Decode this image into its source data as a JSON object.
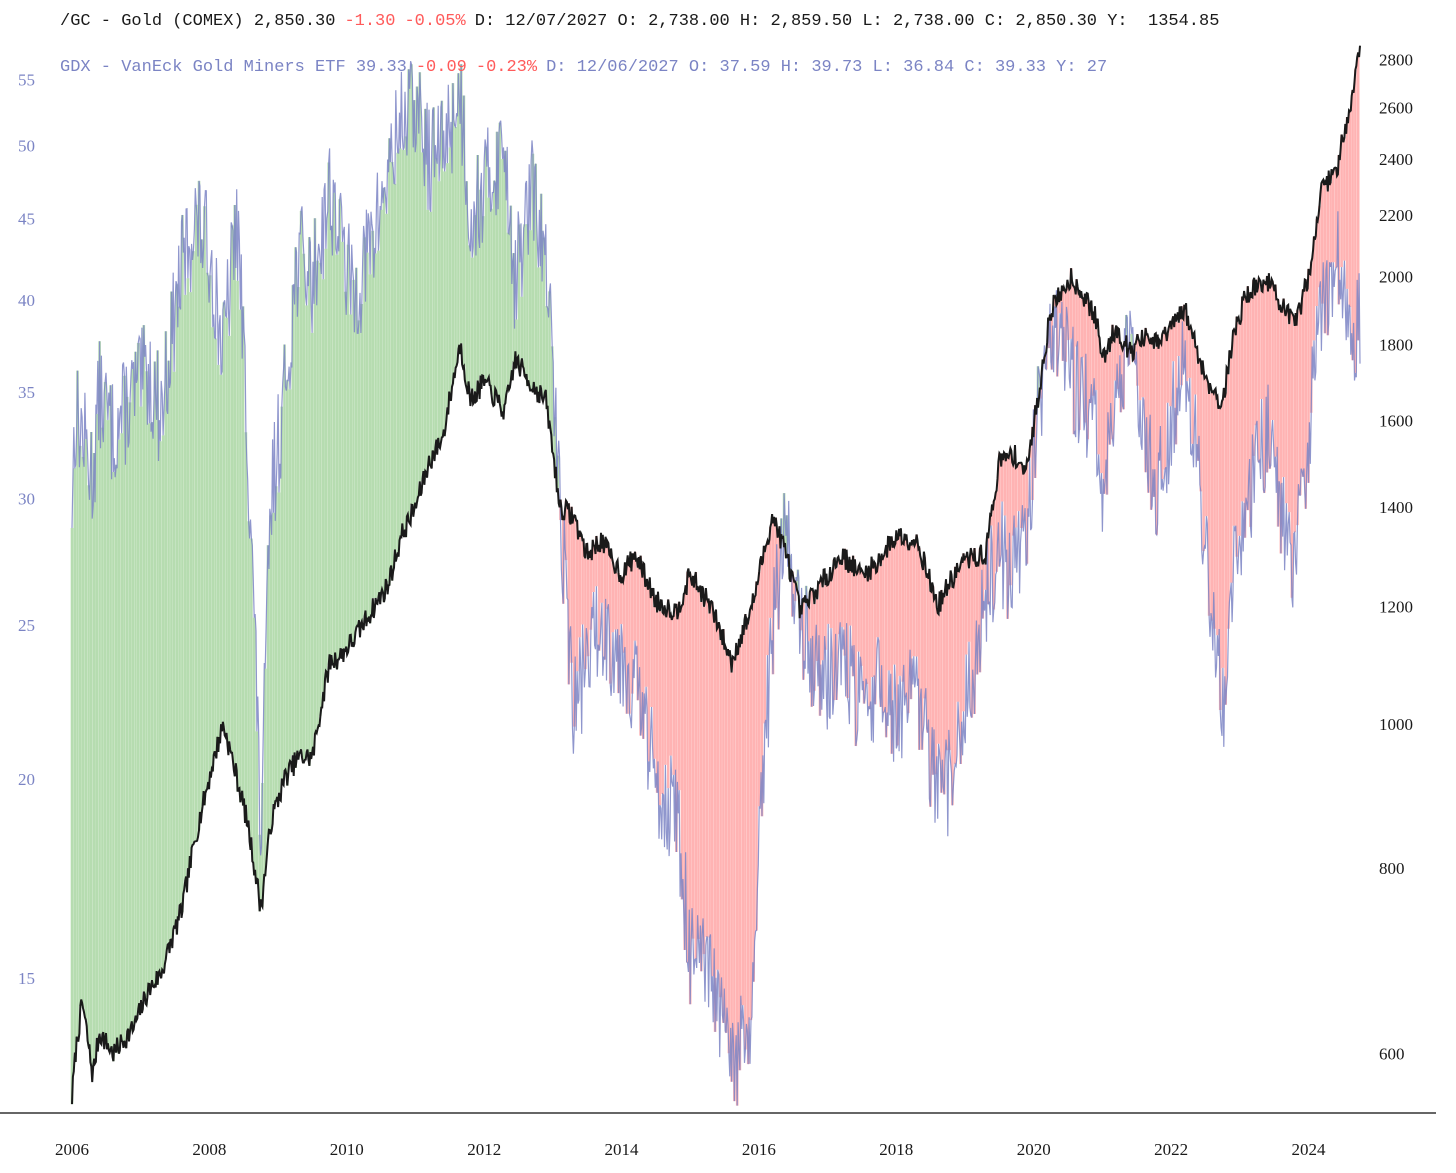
{
  "chart_data": {
    "type": "line",
    "chart_style": "dual-axis price comparison with shaded spread (green when GDX above gold, red when below)",
    "header": {
      "gold": {
        "symbol_text": "/GC - Gold (COMEX) 2,850.30",
        "change": "-1.30",
        "change_pct": "-0.05%",
        "details": "D: 12/07/2027 O: 2,738.00 H: 2,859.50 L: 2,738.00 C: 2,850.30 Y:  1354.85"
      },
      "gdx": {
        "symbol_text": "GDX - VanEck Gold Miners ETF 39.33",
        "change": "-0.09",
        "change_pct": "-0.23%",
        "details": "D: 12/06/2027 O: 37.59 H: 39.73 L: 36.84 C: 39.33 Y: 27"
      }
    },
    "colors": {
      "gold_line": "#1a1a1a",
      "gdx_line": "#7b84c4",
      "gdx_axis_text": "#7b84c4",
      "positive_fill": "#b6dcb0",
      "negative_fill": "#ffb3b3",
      "negative_text": "#ff5a5a"
    },
    "x_axis": {
      "ticks": [
        "2006",
        "2008",
        "2010",
        "2012",
        "2014",
        "2016",
        "2018",
        "2020",
        "2022",
        "2024"
      ],
      "range": [
        2006.0,
        2024.75
      ]
    },
    "y_left": {
      "series": "GDX",
      "scale": "log",
      "ticks": [
        55,
        50,
        45,
        40,
        35,
        30,
        25,
        20,
        15
      ],
      "range": [
        12.5,
        57
      ]
    },
    "y_right": {
      "series": "Gold",
      "scale": "log",
      "ticks": [
        2800,
        2600,
        2400,
        2200,
        2000,
        1800,
        1600,
        1400,
        1200,
        1000,
        800,
        600
      ],
      "range": [
        555,
        2820
      ]
    },
    "series": [
      {
        "name": "/GC - Gold (COMEX)",
        "axis": "right",
        "x": [
          2006.0,
          2006.05,
          2006.15,
          2006.3,
          2006.4,
          2006.6,
          2006.9,
          2007.1,
          2007.3,
          2007.6,
          2007.8,
          2008.0,
          2008.2,
          2008.4,
          2008.55,
          2008.75,
          2008.9,
          2009.1,
          2009.3,
          2009.5,
          2009.75,
          2009.9,
          2010.1,
          2010.4,
          2010.6,
          2010.8,
          2011.0,
          2011.2,
          2011.4,
          2011.65,
          2011.8,
          2012.0,
          2012.3,
          2012.45,
          2012.7,
          2012.9,
          2013.1,
          2013.3,
          2013.5,
          2013.7,
          2014.0,
          2014.2,
          2014.5,
          2014.8,
          2015.0,
          2015.3,
          2015.6,
          2015.9,
          2016.2,
          2016.4,
          2016.6,
          2016.95,
          2017.2,
          2017.5,
          2017.7,
          2018.0,
          2018.3,
          2018.6,
          2018.8,
          2019.0,
          2019.3,
          2019.5,
          2019.7,
          2019.9,
          2020.1,
          2020.25,
          2020.55,
          2020.7,
          2020.9,
          2021.0,
          2021.2,
          2021.4,
          2021.6,
          2021.8,
          2022.0,
          2022.2,
          2022.5,
          2022.75,
          2022.9,
          2023.1,
          2023.4,
          2023.6,
          2023.8,
          2024.0,
          2024.2,
          2024.4,
          2024.6,
          2024.75
        ],
        "values": [
          560,
          600,
          650,
          580,
          620,
          600,
          625,
          660,
          680,
          750,
          840,
          920,
          1000,
          920,
          860,
          750,
          860,
          920,
          950,
          950,
          1100,
          1110,
          1140,
          1200,
          1240,
          1340,
          1400,
          1500,
          1560,
          1800,
          1650,
          1700,
          1620,
          1760,
          1690,
          1650,
          1400,
          1380,
          1300,
          1330,
          1260,
          1300,
          1210,
          1190,
          1260,
          1200,
          1100,
          1200,
          1380,
          1300,
          1190,
          1250,
          1300,
          1260,
          1280,
          1340,
          1330,
          1200,
          1250,
          1290,
          1300,
          1500,
          1520,
          1480,
          1700,
          1900,
          2000,
          1950,
          1880,
          1760,
          1850,
          1780,
          1820,
          1800,
          1850,
          1900,
          1710,
          1640,
          1820,
          1950,
          1990,
          1920,
          1850,
          2000,
          2300,
          2350,
          2600,
          2850
        ]
      },
      {
        "name": "GDX - VanEck Gold Miners ETF",
        "axis": "left",
        "x": [
          2006.0,
          2006.05,
          2006.15,
          2006.3,
          2006.4,
          2006.6,
          2006.9,
          2007.1,
          2007.3,
          2007.6,
          2007.8,
          2008.0,
          2008.2,
          2008.4,
          2008.55,
          2008.75,
          2008.9,
          2009.1,
          2009.3,
          2009.5,
          2009.75,
          2009.9,
          2010.1,
          2010.4,
          2010.6,
          2010.8,
          2011.0,
          2011.2,
          2011.4,
          2011.65,
          2011.8,
          2012.0,
          2012.3,
          2012.45,
          2012.7,
          2012.9,
          2013.1,
          2013.3,
          2013.5,
          2013.7,
          2014.0,
          2014.2,
          2014.5,
          2014.8,
          2015.0,
          2015.3,
          2015.6,
          2015.9,
          2016.2,
          2016.4,
          2016.6,
          2016.95,
          2017.2,
          2017.5,
          2017.7,
          2018.0,
          2018.3,
          2018.6,
          2018.8,
          2019.0,
          2019.3,
          2019.5,
          2019.7,
          2019.9,
          2020.1,
          2020.25,
          2020.55,
          2020.7,
          2020.9,
          2021.0,
          2021.2,
          2021.4,
          2021.6,
          2021.8,
          2022.0,
          2022.2,
          2022.5,
          2022.75,
          2022.9,
          2023.1,
          2023.4,
          2023.6,
          2023.8,
          2024.0,
          2024.2,
          2024.4,
          2024.6,
          2024.75
        ],
        "values": [
          30,
          34,
          33,
          31,
          35,
          33,
          35,
          36,
          34,
          42,
          45,
          43,
          37,
          45,
          33,
          18,
          30,
          35,
          43,
          41,
          47,
          44,
          40,
          44,
          48,
          52,
          53,
          49,
          50,
          54,
          45,
          47,
          50,
          41,
          47,
          42,
          30,
          22,
          24,
          25,
          24,
          23,
          20,
          19,
          15.5,
          15,
          13.2,
          14,
          25,
          29,
          25,
          23,
          24,
          22,
          23,
          22,
          22.5,
          19.5,
          20,
          22,
          26,
          28,
          27,
          29,
          35,
          39,
          36,
          35,
          33,
          30,
          35,
          37,
          34,
          30,
          34,
          37,
          28,
          22,
          27,
          30,
          33,
          30,
          27,
          33,
          40,
          43,
          38,
          39.3
        ]
      }
    ]
  }
}
